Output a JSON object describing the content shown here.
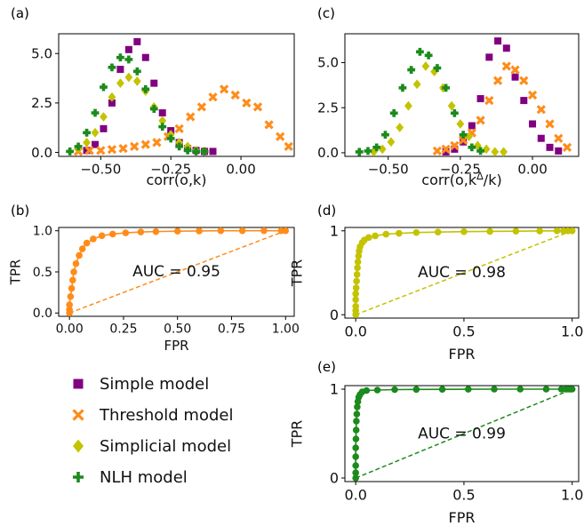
{
  "panel_labels": {
    "a": "(a)",
    "b": "(b)",
    "c": "(c)",
    "d": "(d)",
    "e": "(e)"
  },
  "legend": [
    {
      "name": "Simple model",
      "marker": "square",
      "color": "#800080"
    },
    {
      "name": "Threshold model",
      "marker": "x",
      "color": "#FF8C1A"
    },
    {
      "name": "Simplicial model",
      "marker": "diamond",
      "color": "#C3C300"
    },
    {
      "name": "NLH model",
      "marker": "plus",
      "color": "#1C8A1C"
    }
  ],
  "chart_data": [
    {
      "id": "a",
      "type": "scatter",
      "xlabel": "corr(o,k)",
      "ylabel": "",
      "xlim": [
        -0.65,
        0.19
      ],
      "ylim": [
        -0.2,
        6.0
      ],
      "xticks": [
        -0.5,
        -0.25,
        0.0
      ],
      "xticklabels": [
        "−0.50",
        "−0.25",
        "0.00"
      ],
      "yticks": [
        0,
        2.5,
        5.0
      ],
      "yticklabels": [
        "0.0",
        "2.5",
        "5.0"
      ],
      "series": [
        {
          "name": "Simple model",
          "color": "#800080",
          "marker": "square",
          "x": [
            -0.55,
            -0.52,
            -0.49,
            -0.46,
            -0.43,
            -0.4,
            -0.37,
            -0.34,
            -0.31,
            -0.28,
            -0.25,
            -0.22,
            -0.19,
            -0.16,
            -0.13,
            -0.1
          ],
          "y": [
            0.1,
            0.4,
            1.2,
            2.5,
            4.2,
            5.2,
            5.6,
            4.8,
            3.5,
            2.0,
            1.1,
            0.5,
            0.2,
            0.1,
            0.05,
            0.05
          ]
        },
        {
          "name": "Threshold model",
          "color": "#FF8C1A",
          "marker": "x",
          "x": [
            -0.58,
            -0.54,
            -0.5,
            -0.46,
            -0.42,
            -0.38,
            -0.34,
            -0.3,
            -0.26,
            -0.22,
            -0.18,
            -0.14,
            -0.1,
            -0.06,
            -0.02,
            0.02,
            0.06,
            0.1,
            0.14,
            0.17
          ],
          "y": [
            0.05,
            0.1,
            0.1,
            0.15,
            0.2,
            0.3,
            0.4,
            0.5,
            0.8,
            1.2,
            1.8,
            2.3,
            2.8,
            3.2,
            2.9,
            2.5,
            2.3,
            1.4,
            0.8,
            0.3
          ]
        },
        {
          "name": "Simplicial model",
          "color": "#C3C300",
          "marker": "diamond",
          "x": [
            -0.58,
            -0.55,
            -0.52,
            -0.49,
            -0.46,
            -0.43,
            -0.4,
            -0.37,
            -0.34,
            -0.31,
            -0.28,
            -0.25,
            -0.22,
            -0.19,
            -0.16,
            -0.13
          ],
          "y": [
            0.2,
            0.5,
            1.0,
            1.8,
            2.8,
            3.5,
            3.8,
            3.6,
            3.1,
            2.3,
            1.6,
            0.9,
            0.5,
            0.3,
            0.1,
            0.05
          ]
        },
        {
          "name": "NLH model",
          "color": "#1C8A1C",
          "marker": "plus",
          "x": [
            -0.61,
            -0.58,
            -0.55,
            -0.52,
            -0.49,
            -0.46,
            -0.43,
            -0.4,
            -0.37,
            -0.34,
            -0.31,
            -0.28,
            -0.25,
            -0.22,
            -0.19,
            -0.16,
            -0.13
          ],
          "y": [
            0.05,
            0.3,
            1.0,
            2.0,
            3.3,
            4.3,
            4.8,
            4.7,
            4.1,
            3.2,
            2.2,
            1.3,
            0.7,
            0.3,
            0.1,
            0.05,
            0.05
          ]
        }
      ]
    },
    {
      "id": "c",
      "type": "scatter",
      "xlabel": "corr(o,kΔ/k)",
      "ylabel": "",
      "xlim": [
        -0.65,
        0.16
      ],
      "ylim": [
        -0.2,
        6.6
      ],
      "xticks": [
        -0.5,
        -0.25,
        0.0
      ],
      "xticklabels": [
        "−0.50",
        "−0.25",
        "0.00"
      ],
      "yticks": [
        0,
        2.5,
        5.0
      ],
      "yticklabels": [
        "0.0",
        "2.5",
        "5.0"
      ],
      "series": [
        {
          "name": "Simple model",
          "color": "#800080",
          "marker": "square",
          "x": [
            -0.3,
            -0.27,
            -0.24,
            -0.21,
            -0.18,
            -0.15,
            -0.12,
            -0.09,
            -0.06,
            -0.03,
            0.0,
            0.03,
            0.06,
            0.09
          ],
          "y": [
            0.05,
            0.2,
            0.6,
            1.5,
            3.0,
            5.3,
            6.2,
            5.8,
            4.2,
            2.9,
            1.6,
            0.8,
            0.3,
            0.1
          ]
        },
        {
          "name": "Threshold model",
          "color": "#FF8C1A",
          "marker": "x",
          "x": [
            -0.33,
            -0.3,
            -0.27,
            -0.24,
            -0.21,
            -0.18,
            -0.15,
            -0.12,
            -0.09,
            -0.06,
            -0.03,
            0.0,
            0.03,
            0.06,
            0.09,
            0.12
          ],
          "y": [
            0.1,
            0.2,
            0.4,
            0.7,
            1.1,
            1.8,
            2.9,
            4.0,
            4.8,
            4.6,
            4.0,
            3.2,
            2.4,
            1.6,
            0.8,
            0.3
          ]
        },
        {
          "name": "Simplicial model",
          "color": "#C3C300",
          "marker": "diamond",
          "x": [
            -0.55,
            -0.52,
            -0.49,
            -0.46,
            -0.43,
            -0.4,
            -0.37,
            -0.34,
            -0.31,
            -0.28,
            -0.25,
            -0.22,
            -0.19,
            -0.16,
            -0.13,
            -0.1
          ],
          "y": [
            0.05,
            0.2,
            0.6,
            1.4,
            2.6,
            3.8,
            4.8,
            4.5,
            3.6,
            2.6,
            1.6,
            0.9,
            0.4,
            0.2,
            0.05,
            0.05
          ]
        },
        {
          "name": "NLH model",
          "color": "#1C8A1C",
          "marker": "plus",
          "x": [
            -0.6,
            -0.57,
            -0.54,
            -0.51,
            -0.48,
            -0.45,
            -0.42,
            -0.39,
            -0.36,
            -0.33,
            -0.3,
            -0.27,
            -0.24,
            -0.21,
            -0.18
          ],
          "y": [
            0.05,
            0.1,
            0.3,
            1.0,
            2.2,
            3.6,
            4.6,
            5.6,
            5.4,
            4.7,
            3.6,
            2.2,
            1.0,
            0.3,
            0.1
          ]
        }
      ]
    },
    {
      "id": "b",
      "type": "line",
      "xlabel": "FPR",
      "ylabel": "TPR",
      "annotation": "AUC = 0.95",
      "color": "#FF8C1A",
      "xlim": [
        -0.05,
        1.04
      ],
      "ylim": [
        -0.04,
        1.04
      ],
      "xticks": [
        0,
        0.25,
        0.5,
        0.75,
        1.0
      ],
      "xticklabels": [
        "0.00",
        "0.25",
        "0.50",
        "0.75",
        "1.00"
      ],
      "yticks": [
        0,
        0.5,
        1.0
      ],
      "yticklabels": [
        "0.0",
        "0.5",
        "1.0"
      ],
      "x": [
        0,
        0,
        0,
        0.005,
        0.01,
        0.015,
        0.02,
        0.03,
        0.045,
        0.06,
        0.08,
        0.11,
        0.15,
        0.2,
        0.26,
        0.33,
        0.4,
        0.5,
        0.6,
        0.7,
        0.8,
        0.9,
        0.98,
        1.0
      ],
      "y": [
        0,
        0.04,
        0.1,
        0.2,
        0.3,
        0.4,
        0.5,
        0.6,
        0.7,
        0.78,
        0.85,
        0.9,
        0.94,
        0.96,
        0.975,
        0.985,
        0.99,
        0.995,
        0.998,
        1.0,
        1.0,
        1.0,
        1.0,
        1.0
      ]
    },
    {
      "id": "d",
      "type": "line",
      "xlabel": "FPR",
      "ylabel": "TPR",
      "annotation": "AUC = 0.98",
      "color": "#C3C300",
      "xlim": [
        -0.05,
        1.03
      ],
      "ylim": [
        -0.04,
        1.04
      ],
      "xticks": [
        0,
        0.5,
        1.0
      ],
      "xticklabels": [
        "0.0",
        "0.5",
        "1.0"
      ],
      "yticks": [
        0,
        1
      ],
      "yticklabels": [
        "0",
        "1"
      ],
      "x": [
        0,
        0,
        0,
        0,
        0,
        0.002,
        0.004,
        0.006,
        0.008,
        0.01,
        0.013,
        0.016,
        0.02,
        0.03,
        0.04,
        0.06,
        0.09,
        0.14,
        0.2,
        0.28,
        0.38,
        0.5,
        0.62,
        0.74,
        0.85,
        0.93,
        0.96,
        0.98,
        1.0
      ],
      "y": [
        0,
        0.05,
        0.1,
        0.18,
        0.25,
        0.32,
        0.4,
        0.48,
        0.56,
        0.63,
        0.7,
        0.76,
        0.81,
        0.86,
        0.89,
        0.92,
        0.94,
        0.96,
        0.97,
        0.98,
        0.985,
        0.99,
        0.993,
        0.996,
        0.998,
        1.0,
        1.0,
        1.0,
        1.0
      ]
    },
    {
      "id": "e",
      "type": "line",
      "xlabel": "FPR",
      "ylabel": "TPR",
      "annotation": "AUC = 0.99",
      "color": "#1C8A1C",
      "xlim": [
        -0.05,
        1.03
      ],
      "ylim": [
        -0.04,
        1.04
      ],
      "xticks": [
        0,
        0.5,
        1.0
      ],
      "xticklabels": [
        "0.0",
        "0.5",
        "1.0"
      ],
      "yticks": [
        0,
        1
      ],
      "yticklabels": [
        "0",
        "1"
      ],
      "x": [
        0,
        0,
        0,
        0,
        0,
        0.001,
        0.002,
        0.003,
        0.005,
        0.007,
        0.01,
        0.014,
        0.02,
        0.03,
        0.05,
        0.1,
        0.18,
        0.28,
        0.4,
        0.52,
        0.64,
        0.76,
        0.88,
        0.95,
        0.97,
        0.98,
        0.99,
        1.0
      ],
      "y": [
        0,
        0.06,
        0.14,
        0.24,
        0.34,
        0.44,
        0.54,
        0.64,
        0.72,
        0.8,
        0.86,
        0.91,
        0.94,
        0.97,
        0.985,
        0.99,
        0.995,
        0.997,
        0.998,
        0.999,
        1.0,
        1.0,
        1.0,
        1.0,
        1.0,
        1.0,
        1.0,
        1.0
      ]
    }
  ]
}
